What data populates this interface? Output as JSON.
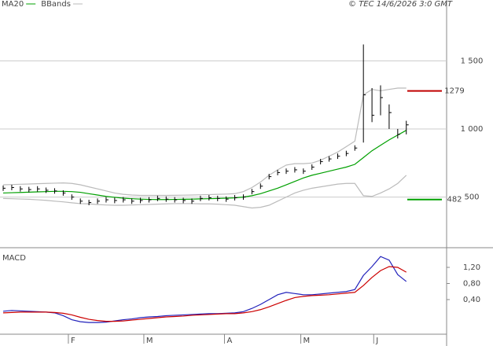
{
  "header": {
    "copyright": "© TEC 14/6/2026 3:0 GMT"
  },
  "chart_data": [
    {
      "type": "ohlc",
      "x": [
        0,
        1,
        2,
        3,
        4,
        5,
        6,
        7,
        8,
        9,
        10,
        11,
        12,
        13,
        14,
        15,
        16,
        17,
        18,
        19,
        20,
        21,
        22,
        23,
        24,
        25,
        26,
        27,
        28,
        29,
        30,
        31,
        32,
        33,
        34,
        35,
        36,
        37,
        38,
        39,
        40,
        41,
        42,
        43,
        44,
        45,
        46,
        47
      ],
      "values": [
        565,
        570,
        560,
        555,
        560,
        550,
        545,
        530,
        500,
        470,
        460,
        470,
        480,
        475,
        480,
        470,
        475,
        480,
        490,
        485,
        480,
        475,
        470,
        490,
        495,
        490,
        485,
        495,
        500,
        540,
        580,
        650,
        680,
        690,
        700,
        690,
        720,
        760,
        780,
        800,
        820,
        860,
        1250,
        1100,
        1230,
        1120,
        960,
        1030
      ],
      "high": [
        585,
        590,
        580,
        575,
        580,
        570,
        565,
        550,
        520,
        490,
        480,
        490,
        500,
        495,
        500,
        490,
        495,
        500,
        510,
        505,
        500,
        495,
        490,
        510,
        515,
        510,
        505,
        515,
        520,
        560,
        600,
        670,
        700,
        710,
        720,
        710,
        740,
        780,
        800,
        820,
        840,
        880,
        1620,
        1300,
        1320,
        1180,
        1000,
        1060
      ],
      "low": [
        545,
        550,
        540,
        535,
        540,
        530,
        525,
        510,
        480,
        450,
        440,
        450,
        460,
        455,
        460,
        450,
        455,
        460,
        470,
        465,
        460,
        455,
        450,
        470,
        475,
        470,
        465,
        475,
        480,
        520,
        560,
        630,
        660,
        670,
        680,
        670,
        700,
        740,
        760,
        780,
        800,
        840,
        900,
        1050,
        1100,
        1000,
        930,
        960
      ],
      "color": "#000000",
      "series": [
        {
          "name": "MA20",
          "color": "#00a000",
          "values": [
            530,
            532,
            534,
            536,
            538,
            540,
            542,
            542,
            540,
            535,
            525,
            515,
            505,
            498,
            492,
            488,
            485,
            483,
            482,
            482,
            483,
            484,
            485,
            487,
            488,
            490,
            492,
            494,
            500,
            510,
            525,
            545,
            565,
            590,
            615,
            640,
            660,
            675,
            690,
            705,
            720,
            740,
            790,
            840,
            880,
            920,
            955,
            990
          ]
        },
        {
          "name": "BBands",
          "color": "#bbbbbb",
          "values": [
            590,
            592,
            594,
            596,
            598,
            600,
            602,
            604,
            600,
            590,
            575,
            560,
            545,
            530,
            520,
            515,
            512,
            512,
            512,
            512,
            513,
            514,
            515,
            517,
            518,
            520,
            522,
            525,
            540,
            570,
            610,
            660,
            700,
            735,
            745,
            745,
            750,
            770,
            800,
            830,
            870,
            910,
            1250,
            1290,
            1280,
            1290,
            1300,
            1300
          ],
          "lower": [
            490,
            488,
            486,
            484,
            480,
            476,
            470,
            465,
            458,
            452,
            450,
            445,
            442,
            440,
            440,
            442,
            444,
            446,
            448,
            450,
            452,
            452,
            452,
            450,
            450,
            448,
            444,
            440,
            430,
            420,
            425,
            440,
            470,
            500,
            530,
            550,
            565,
            575,
            585,
            595,
            600,
            600,
            510,
            505,
            530,
            560,
            600,
            660
          ]
        }
      ],
      "markers": [
        {
          "value": 1279,
          "color": "#c00000"
        },
        {
          "value": 482,
          "color": "#00a000"
        }
      ],
      "xlim": [
        -0.37,
        51.7
      ],
      "ylim": [
        140,
        1900
      ],
      "yticks": [
        {
          "value": 500,
          "label": "500"
        },
        {
          "value": 1000,
          "label": "1 000"
        },
        {
          "value": 1500,
          "label": "1 500"
        }
      ],
      "grid": true
    },
    {
      "type": "line",
      "title": "MACD",
      "x": [
        0,
        1,
        2,
        3,
        4,
        5,
        6,
        7,
        8,
        9,
        10,
        11,
        12,
        13,
        14,
        15,
        16,
        17,
        18,
        19,
        20,
        21,
        22,
        23,
        24,
        25,
        26,
        27,
        28,
        29,
        30,
        31,
        32,
        33,
        34,
        35,
        36,
        37,
        38,
        39,
        40,
        41,
        42,
        43,
        44,
        45,
        46,
        47
      ],
      "series": [
        {
          "color": "#2222bb",
          "values": [
            0.11,
            0.13,
            0.12,
            0.11,
            0.1,
            0.09,
            0.07,
            0.0,
            -0.1,
            -0.15,
            -0.17,
            -0.17,
            -0.16,
            -0.13,
            -0.1,
            -0.08,
            -0.05,
            -0.03,
            -0.02,
            0.0,
            0.01,
            0.02,
            0.03,
            0.04,
            0.05,
            0.05,
            0.06,
            0.07,
            0.1,
            0.18,
            0.28,
            0.4,
            0.52,
            0.58,
            0.55,
            0.52,
            0.52,
            0.54,
            0.56,
            0.58,
            0.6,
            0.65,
            1.0,
            1.22,
            1.47,
            1.38,
            1.02,
            0.85
          ]
        },
        {
          "color": "#cc0000",
          "values": [
            0.07,
            0.08,
            0.09,
            0.09,
            0.09,
            0.09,
            0.08,
            0.06,
            0.02,
            -0.04,
            -0.09,
            -0.12,
            -0.14,
            -0.14,
            -0.13,
            -0.11,
            -0.09,
            -0.07,
            -0.05,
            -0.03,
            -0.02,
            -0.01,
            0.01,
            0.02,
            0.03,
            0.04,
            0.05,
            0.05,
            0.07,
            0.1,
            0.15,
            0.22,
            0.3,
            0.38,
            0.45,
            0.48,
            0.5,
            0.51,
            0.52,
            0.54,
            0.56,
            0.58,
            0.75,
            0.95,
            1.12,
            1.22,
            1.2,
            1.08
          ]
        }
      ],
      "xlim": [
        -0.37,
        51.7
      ],
      "ylim": [
        -0.46,
        1.63
      ],
      "yticks": [
        {
          "value": 0.4,
          "label": "0,40"
        },
        {
          "value": 0.8,
          "label": "0,80"
        },
        {
          "value": 1.2,
          "label": "1,20"
        }
      ],
      "xticks": [
        {
          "value": 7.6,
          "label": "F"
        },
        {
          "value": 16.4,
          "label": "M"
        },
        {
          "value": 25.8,
          "label": "A"
        },
        {
          "value": 34.7,
          "label": "M"
        },
        {
          "value": 43.2,
          "label": "J"
        }
      ]
    }
  ]
}
